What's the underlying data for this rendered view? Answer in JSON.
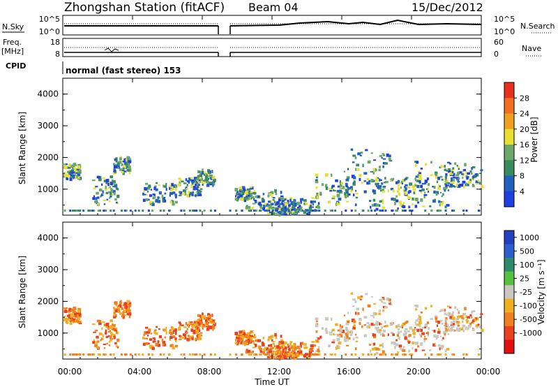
{
  "header": {
    "station": "Zhongshan Station (fitACF)",
    "beam": "Beam 04",
    "date": "15/Dec/2012"
  },
  "top_panels": {
    "nsky_label": "N.Sky",
    "nsky_ticks": [
      "10^5",
      "10^0"
    ],
    "nsearch_label": "N.Search",
    "nsearch_ticks": [
      "10^5",
      "10^0"
    ],
    "freq_label_line1": "Freq.",
    "freq_label_line2": "[MHz]",
    "freq_ticks": [
      "18",
      "8"
    ],
    "nave_label": "Nave",
    "nave_ticks": [
      "60",
      "0"
    ],
    "cpid_label": "CPID",
    "cpid_text": "normal (fast stereo) 153"
  },
  "colors": {
    "power_scale": [
      "#1f3fe0",
      "#2060c0",
      "#3a8a60",
      "#6aa86a",
      "#e8e030",
      "#f0a020",
      "#f07020",
      "#e83020"
    ],
    "velocity_scale": [
      "#2040c0",
      "#2e5fd0",
      "#2f8a6a",
      "#56c040",
      "#c8c8c0",
      "#f0b020",
      "#f08020",
      "#e84020",
      "#e01010"
    ]
  },
  "chart_data": [
    {
      "type": "heatmap",
      "panel": "power",
      "ylabel": "Slant Range [km]",
      "ylim": [
        180,
        4500
      ],
      "yticks": [
        "1000",
        "2000",
        "3000",
        "4000"
      ],
      "xlabel": "Time UT",
      "xlim": [
        "00:00",
        "24:00"
      ],
      "xticks": [
        "00:00",
        "04:00",
        "08:00",
        "12:00",
        "16:00",
        "20:00",
        "00:00"
      ],
      "colorbar_label": "Power [dB]",
      "colorbar_ticks": [
        "4",
        "8",
        "12",
        "16",
        "20",
        "24",
        "28"
      ]
    },
    {
      "type": "heatmap",
      "panel": "velocity",
      "ylabel": "Slant Range [km]",
      "ylim": [
        180,
        4500
      ],
      "yticks": [
        "1000",
        "2000",
        "3000",
        "4000"
      ],
      "xlabel": "Time UT",
      "xlim": [
        "00:00",
        "24:00"
      ],
      "xticks": [
        "00:00",
        "04:00",
        "08:00",
        "12:00",
        "16:00",
        "20:00",
        "00:00"
      ],
      "colorbar_label": "Velocity [m s⁻¹]",
      "colorbar_ticks": [
        "1000",
        "500",
        "100",
        "25",
        "-25",
        "-100",
        "-500",
        "-1000"
      ]
    }
  ]
}
